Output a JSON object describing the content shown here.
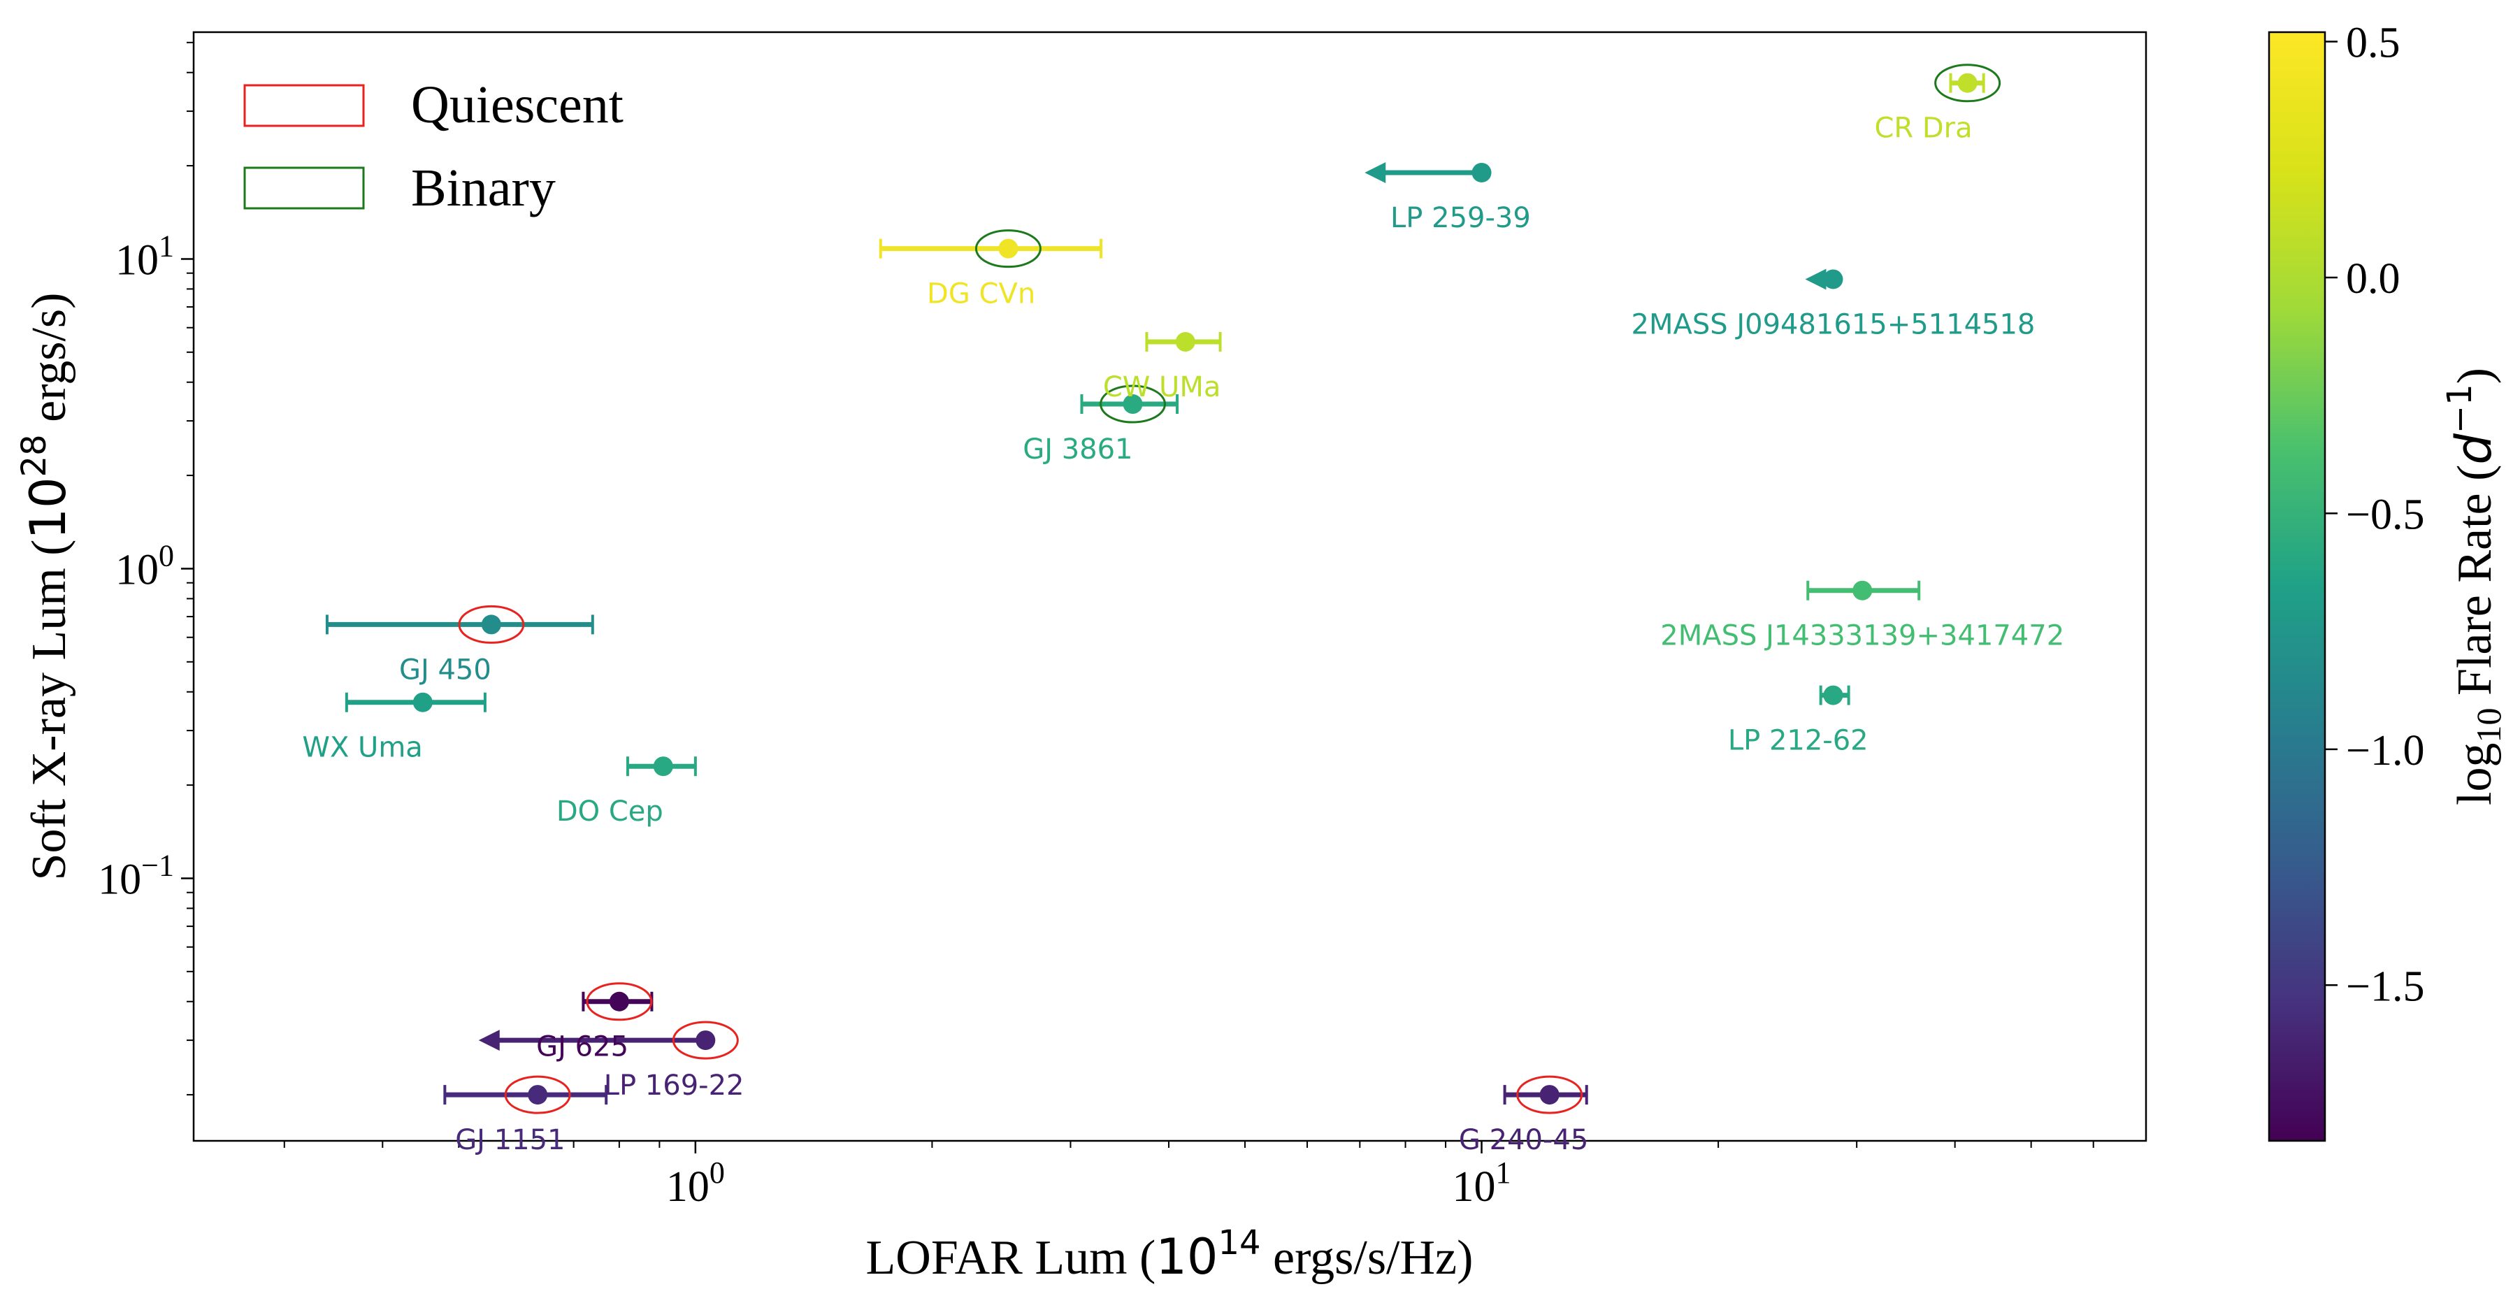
{
  "chart_data": {
    "type": "scatter",
    "title": "",
    "xlabel": "LOFAR Lum ($10^{14}$ ergs/s/Hz)",
    "xlabel_parts": {
      "pre": "LOFAR Lum (",
      "base": "10",
      "exp": "14",
      "post": " ergs/s/Hz)"
    },
    "ylabel": "Soft X-ray Lum ($10^{28}$ ergs/s)",
    "ylabel_parts": {
      "pre": "Soft X-ray Lum (",
      "base": "10",
      "exp": "28",
      "post": " ergs/s)"
    },
    "xscale": "log",
    "yscale": "log",
    "xlim": [
      0.23,
      70
    ],
    "ylim": [
      0.0142,
      54
    ],
    "x_ticks": [
      {
        "value": 1,
        "base": "10",
        "exp": "0"
      },
      {
        "value": 10,
        "base": "10",
        "exp": "1"
      }
    ],
    "y_ticks": [
      {
        "value": 0.1,
        "base": "10",
        "exp": "−1"
      },
      {
        "value": 1,
        "base": "10",
        "exp": "0"
      },
      {
        "value": 10,
        "base": "10",
        "exp": "1"
      }
    ],
    "grid": false,
    "legend": {
      "placement": "top-left",
      "entries": [
        {
          "label": "Quiescent",
          "color": "#e8231f"
        },
        {
          "label": "Binary",
          "color": "#1c7a1c"
        }
      ]
    },
    "colorbar": {
      "label_parts": {
        "pre": "log",
        "sub": "10",
        "mid": " Flare Rate (",
        "var": "d",
        "exp": "−1",
        "post": ")"
      },
      "min": -1.83,
      "max": 0.52,
      "ticks": [
        {
          "value": 0.5,
          "label": "0.5"
        },
        {
          "value": 0.0,
          "label": "0.0"
        },
        {
          "value": -0.5,
          "label": "−0.5"
        },
        {
          "value": -1.0,
          "label": "−1.0"
        },
        {
          "value": -1.5,
          "label": "−1.5"
        }
      ],
      "colormap": "viridis"
    },
    "points": [
      {
        "name": "CR Dra",
        "x": 41.5,
        "y": 37.0,
        "xerr": [
          39.5,
          43.5
        ],
        "flare": 0.3,
        "binary": true,
        "quiescent": false,
        "label_dx": -0.9
      },
      {
        "name": "LP 259-39",
        "x": 10.0,
        "y": 19.0,
        "upper_limit": true,
        "arrow_to": 7.1,
        "flare": -0.55,
        "label_dx": -0.3
      },
      {
        "name": "DG CVn",
        "x": 2.5,
        "y": 10.8,
        "xerr": [
          1.72,
          3.28
        ],
        "flare": 0.47,
        "binary": true,
        "quiescent": false,
        "label_dx": -0.5
      },
      {
        "name": "2MASS J09481615+5114518",
        "x": 28.0,
        "y": 8.6,
        "upper_limit": true,
        "arrow_to": 25.8,
        "flare": -0.55,
        "label_dx": 0
      },
      {
        "name": "CW UMa",
        "x": 4.2,
        "y": 5.4,
        "xerr": [
          3.75,
          4.65
        ],
        "flare": 0.28,
        "label_dx": -0.4
      },
      {
        "name": "GJ 3861",
        "x": 3.6,
        "y": 3.4,
        "xerr": [
          3.1,
          4.1
        ],
        "flare": -0.4,
        "binary": true,
        "quiescent": false,
        "label_dx": -1.0
      },
      {
        "name": "2MASS J14333139+3417472",
        "x": 30.5,
        "y": 0.85,
        "xerr": [
          26.0,
          36.0
        ],
        "flare": -0.2,
        "label_dx": 0
      },
      {
        "name": "GJ 450",
        "x": 0.55,
        "y": 0.66,
        "xerr": [
          0.34,
          0.74
        ],
        "flare": -0.68,
        "binary": false,
        "quiescent": true,
        "label_dx": -1.0
      },
      {
        "name": "LP 212-62",
        "x": 28.0,
        "y": 0.39,
        "xerr": [
          27.0,
          29.3
        ],
        "flare": -0.42,
        "label_dx": -0.5
      },
      {
        "name": "WX Uma",
        "x": 0.45,
        "y": 0.37,
        "xerr": [
          0.36,
          0.54
        ],
        "flare": -0.5,
        "label_dx": -1.0
      },
      {
        "name": "DO Cep",
        "x": 0.91,
        "y": 0.23,
        "xerr": [
          0.82,
          1.0
        ],
        "flare": -0.42,
        "label_dx": -1.0
      },
      {
        "name": "GJ 625",
        "x": 0.8,
        "y": 0.04,
        "xerr": [
          0.72,
          0.88
        ],
        "flare": -1.8,
        "binary": false,
        "quiescent": true,
        "label_dx": -0.8
      },
      {
        "name": "LP 169-22",
        "x": 1.03,
        "y": 0.03,
        "upper_limit": true,
        "arrow_to": 0.53,
        "flare": -1.6,
        "binary": false,
        "quiescent": true,
        "label_dx": -0.45
      },
      {
        "name": "GJ 1151",
        "x": 0.63,
        "y": 0.02,
        "xerr": [
          0.48,
          0.77
        ],
        "flare": -1.55,
        "binary": false,
        "quiescent": true,
        "label_dx": -0.5
      },
      {
        "name": "G 240-45",
        "x": 12.2,
        "y": 0.02,
        "xerr": [
          10.7,
          13.6
        ],
        "flare": -1.6,
        "binary": false,
        "quiescent": true,
        "label_dx": -0.4
      }
    ]
  }
}
